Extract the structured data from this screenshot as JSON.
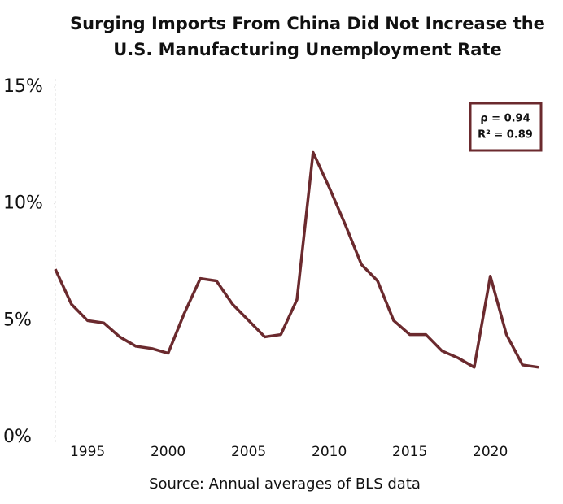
{
  "chart_data": {
    "type": "line",
    "title": [
      "Surging Imports From China Did Not Increase the",
      "U.S. Manufacturing Unemployment Rate"
    ],
    "source": "Source: Annual averages of BLS data",
    "annotations": [
      "ρ = 0.94",
      "R² = 0.89"
    ],
    "x": [
      1993,
      1994,
      1995,
      1996,
      1997,
      1998,
      1999,
      2000,
      2001,
      2002,
      2003,
      2004,
      2005,
      2006,
      2007,
      2008,
      2009,
      2010,
      2011,
      2012,
      2013,
      2014,
      2015,
      2016,
      2017,
      2018,
      2019,
      2020,
      2021,
      2022,
      2023
    ],
    "series": [
      {
        "name": "Manufacturing unemployment rate",
        "color": "#6b2a2e",
        "values": [
          7.2,
          5.7,
          5.0,
          4.9,
          4.3,
          3.9,
          3.8,
          3.6,
          5.3,
          6.8,
          6.7,
          5.7,
          5.0,
          4.3,
          4.4,
          5.9,
          12.2,
          10.7,
          9.1,
          7.4,
          6.7,
          5.0,
          4.4,
          4.4,
          3.7,
          3.4,
          3.0,
          6.9,
          4.4,
          3.1,
          3.0
        ]
      }
    ],
    "xlim": [
      1993,
      2023.3
    ],
    "xticks": [
      1995,
      2000,
      2005,
      2010,
      2015,
      2020
    ],
    "ylim": [
      0,
      15
    ],
    "yticks": [
      {
        "value": 0,
        "label": "0%"
      },
      {
        "value": 5,
        "label": "5%"
      },
      {
        "value": 10,
        "label": "10%"
      },
      {
        "value": 15,
        "label": "15%"
      }
    ]
  }
}
